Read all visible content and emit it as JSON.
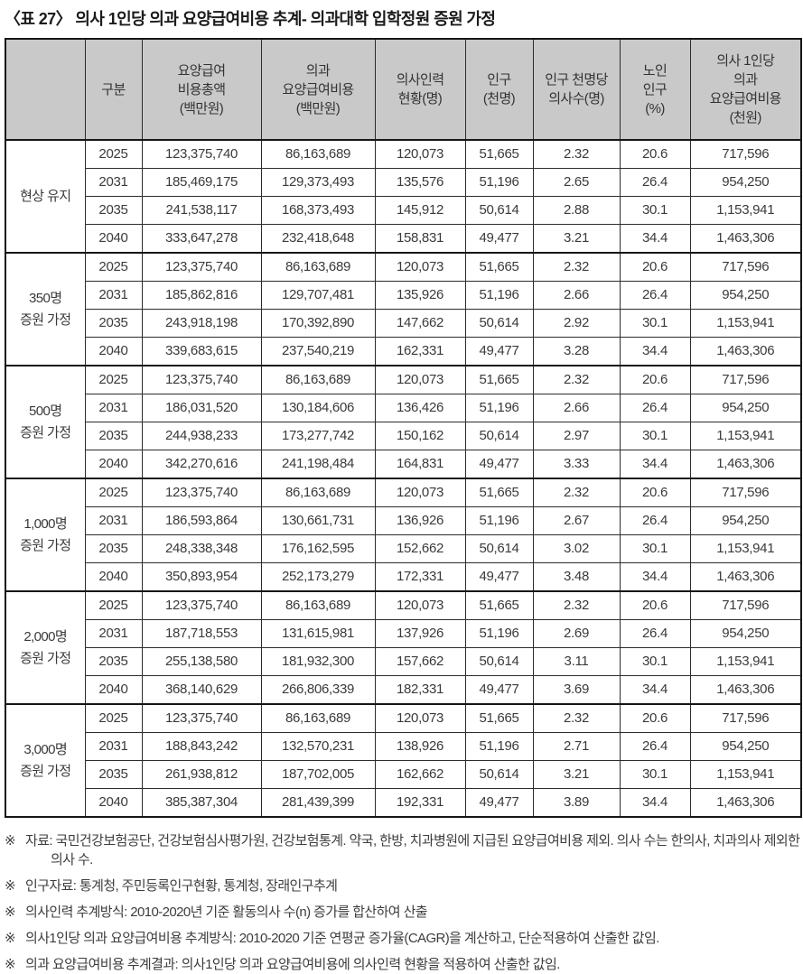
{
  "title": "〈표 27〉 의사 1인당 의과 요양급여비용 추계- 의과대학 입학정원 증원 가정",
  "table": {
    "columns": [
      "",
      "구분",
      "요양급여\n비용총액\n(백만원)",
      "의과\n요양급여비용\n(백만원)",
      "의사인력\n현황(명)",
      "인구\n(천명)",
      "인구 천명당\n의사수(명)",
      "노인\n인구\n(%)",
      "의사 1인당\n의과\n요양급여비용\n(천원)"
    ],
    "groups": [
      {
        "label": "현상 유지",
        "rows": [
          {
            "year": "2025",
            "values": [
              "123,375,740",
              "86,163,689",
              "120,073",
              "51,665",
              "2.32",
              "20.6",
              "717,596"
            ]
          },
          {
            "year": "2031",
            "values": [
              "185,469,175",
              "129,373,493",
              "135,576",
              "51,196",
              "2.65",
              "26.4",
              "954,250"
            ]
          },
          {
            "year": "2035",
            "values": [
              "241,538,117",
              "168,373,493",
              "145,912",
              "50,614",
              "2.88",
              "30.1",
              "1,153,941"
            ]
          },
          {
            "year": "2040",
            "values": [
              "333,647,278",
              "232,418,648",
              "158,831",
              "49,477",
              "3.21",
              "34.4",
              "1,463,306"
            ]
          }
        ]
      },
      {
        "label": "350명\n증원 가정",
        "rows": [
          {
            "year": "2025",
            "values": [
              "123,375,740",
              "86,163,689",
              "120,073",
              "51,665",
              "2.32",
              "20.6",
              "717,596"
            ]
          },
          {
            "year": "2031",
            "values": [
              "185,862,816",
              "129,707,481",
              "135,926",
              "51,196",
              "2.66",
              "26.4",
              "954,250"
            ]
          },
          {
            "year": "2035",
            "values": [
              "243,918,198",
              "170,392,890",
              "147,662",
              "50,614",
              "2.92",
              "30.1",
              "1,153,941"
            ]
          },
          {
            "year": "2040",
            "values": [
              "339,683,615",
              "237,540,219",
              "162,331",
              "49,477",
              "3.28",
              "34.4",
              "1,463,306"
            ]
          }
        ]
      },
      {
        "label": "500명\n증원 가정",
        "rows": [
          {
            "year": "2025",
            "values": [
              "123,375,740",
              "86,163,689",
              "120,073",
              "51,665",
              "2.32",
              "20.6",
              "717,596"
            ]
          },
          {
            "year": "2031",
            "values": [
              "186,031,520",
              "130,184,606",
              "136,426",
              "51,196",
              "2.66",
              "26.4",
              "954,250"
            ]
          },
          {
            "year": "2035",
            "values": [
              "244,938,233",
              "173,277,742",
              "150,162",
              "50,614",
              "2.97",
              "30.1",
              "1,153,941"
            ]
          },
          {
            "year": "2040",
            "values": [
              "342,270,616",
              "241,198,484",
              "164,831",
              "49,477",
              "3.33",
              "34.4",
              "1,463,306"
            ]
          }
        ]
      },
      {
        "label": "1,000명\n증원 가정",
        "rows": [
          {
            "year": "2025",
            "values": [
              "123,375,740",
              "86,163,689",
              "120,073",
              "51,665",
              "2.32",
              "20.6",
              "717,596"
            ]
          },
          {
            "year": "2031",
            "values": [
              "186,593,864",
              "130,661,731",
              "136,926",
              "51,196",
              "2.67",
              "26.4",
              "954,250"
            ]
          },
          {
            "year": "2035",
            "values": [
              "248,338,348",
              "176,162,595",
              "152,662",
              "50,614",
              "3.02",
              "30.1",
              "1,153,941"
            ]
          },
          {
            "year": "2040",
            "values": [
              "350,893,954",
              "252,173,279",
              "172,331",
              "49,477",
              "3.48",
              "34.4",
              "1,463,306"
            ]
          }
        ]
      },
      {
        "label": "2,000명\n증원 가정",
        "rows": [
          {
            "year": "2025",
            "values": [
              "123,375,740",
              "86,163,689",
              "120,073",
              "51,665",
              "2.32",
              "20.6",
              "717,596"
            ]
          },
          {
            "year": "2031",
            "values": [
              "187,718,553",
              "131,615,981",
              "137,926",
              "51,196",
              "2.69",
              "26.4",
              "954,250"
            ]
          },
          {
            "year": "2035",
            "values": [
              "255,138,580",
              "181,932,300",
              "157,662",
              "50,614",
              "3.11",
              "30.1",
              "1,153,941"
            ]
          },
          {
            "year": "2040",
            "values": [
              "368,140,629",
              "266,806,339",
              "182,331",
              "49,477",
              "3.69",
              "34.4",
              "1,463,306"
            ]
          }
        ]
      },
      {
        "label": "3,000명\n증원 가정",
        "rows": [
          {
            "year": "2025",
            "values": [
              "123,375,740",
              "86,163,689",
              "120,073",
              "51,665",
              "2.32",
              "20.6",
              "717,596"
            ]
          },
          {
            "year": "2031",
            "values": [
              "188,843,242",
              "132,570,231",
              "138,926",
              "51,196",
              "2.71",
              "26.4",
              "954,250"
            ]
          },
          {
            "year": "2035",
            "values": [
              "261,938,812",
              "187,702,005",
              "162,662",
              "50,614",
              "3.21",
              "30.1",
              "1,153,941"
            ]
          },
          {
            "year": "2040",
            "values": [
              "385,387,304",
              "281,439,399",
              "192,331",
              "49,477",
              "3.89",
              "34.4",
              "1,463,306"
            ]
          }
        ]
      }
    ]
  },
  "footnotes": [
    {
      "marker": "※",
      "text": "자료: 국민건강보험공단, 건강보험심사평가원, 건강보험통계. 약국, 한방, 치과병원에 지급된 요양급여비용 제외. 의사 수는 한의사, 치과의사 제외한 의사 수."
    },
    {
      "marker": "※",
      "text": "인구자료: 통계청, 주민등록인구현황, 통계청, 장래인구추계"
    },
    {
      "marker": "※",
      "text": "의사인력 추계방식: 2010-2020년 기준 활동의사 수(n) 증가를 합산하여 산출"
    },
    {
      "marker": "※",
      "text": "의사1인당 의과 요양급여비용 추계방식: 2010-2020 기준 연평균 증가율(CAGR)을 계산하고, 단순적용하여 산출한 값임."
    },
    {
      "marker": "※",
      "text": "의과 요양급여비용 추계결과: 의사1인당 의과 요양급여비용에 의사인력 현황을 적용하여 산출한 값임."
    }
  ]
}
